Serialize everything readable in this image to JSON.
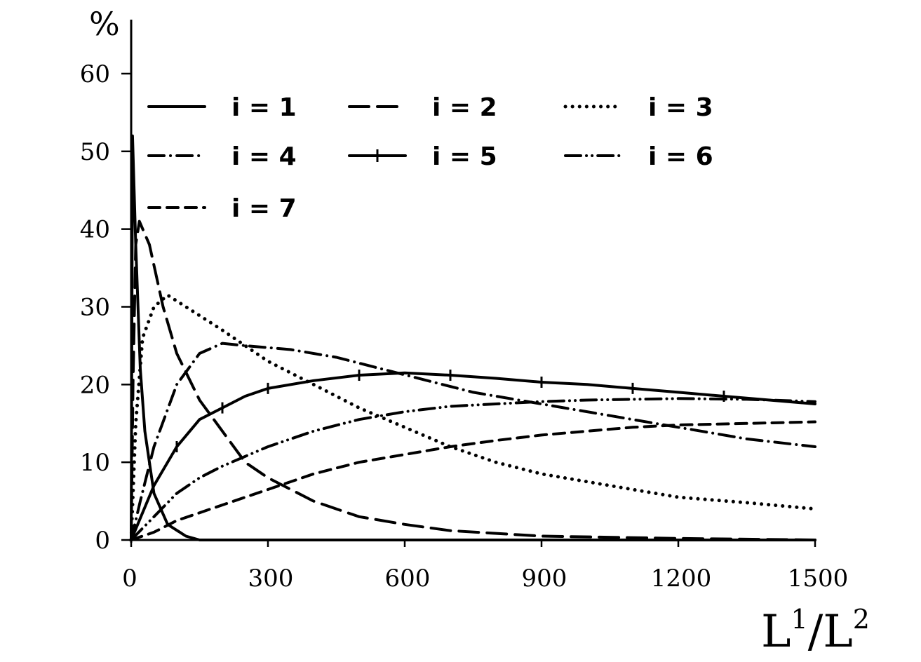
{
  "chart_data": {
    "type": "line",
    "title": "",
    "ylabel": "%",
    "xlabel": {
      "base": "L",
      "sup1": "1",
      "mid": "/L",
      "sup2": "2"
    },
    "xlim": [
      0,
      1500
    ],
    "ylim": [
      0,
      60
    ],
    "x_ticks": [
      0,
      300,
      600,
      900,
      1200,
      1500
    ],
    "y_ticks": [
      0,
      10,
      20,
      30,
      40,
      50,
      60
    ],
    "grid": false,
    "legend_position": "top",
    "series": [
      {
        "name": "i = 1",
        "style": "solid",
        "points": [
          [
            0,
            0
          ],
          [
            3,
            52
          ],
          [
            10,
            38
          ],
          [
            20,
            22
          ],
          [
            30,
            14
          ],
          [
            50,
            6
          ],
          [
            80,
            2
          ],
          [
            120,
            0.5
          ],
          [
            150,
            0
          ],
          [
            1500,
            0
          ]
        ]
      },
      {
        "name": "i = 2",
        "style": "longdash",
        "points": [
          [
            0,
            0
          ],
          [
            4,
            20
          ],
          [
            10,
            38
          ],
          [
            18,
            41
          ],
          [
            40,
            38
          ],
          [
            70,
            30
          ],
          [
            100,
            24
          ],
          [
            150,
            18
          ],
          [
            200,
            14
          ],
          [
            250,
            10
          ],
          [
            300,
            8
          ],
          [
            400,
            5
          ],
          [
            500,
            3
          ],
          [
            600,
            2
          ],
          [
            700,
            1.2
          ],
          [
            900,
            0.5
          ],
          [
            1200,
            0.2
          ],
          [
            1500,
            0
          ]
        ]
      },
      {
        "name": "i = 3",
        "style": "dotted",
        "points": [
          [
            0,
            0
          ],
          [
            10,
            15
          ],
          [
            25,
            26
          ],
          [
            50,
            30
          ],
          [
            80,
            31.5
          ],
          [
            120,
            30
          ],
          [
            200,
            27
          ],
          [
            250,
            25
          ],
          [
            300,
            23
          ],
          [
            400,
            20
          ],
          [
            500,
            17
          ],
          [
            600,
            14.5
          ],
          [
            700,
            12
          ],
          [
            800,
            10
          ],
          [
            900,
            8.5
          ],
          [
            1000,
            7.5
          ],
          [
            1100,
            6.5
          ],
          [
            1200,
            5.5
          ],
          [
            1350,
            4.8
          ],
          [
            1500,
            4
          ]
        ]
      },
      {
        "name": "i = 4",
        "style": "dashdot",
        "points": [
          [
            0,
            0
          ],
          [
            20,
            5
          ],
          [
            50,
            12
          ],
          [
            100,
            20
          ],
          [
            150,
            24
          ],
          [
            200,
            25.3
          ],
          [
            250,
            25
          ],
          [
            350,
            24.5
          ],
          [
            450,
            23.5
          ],
          [
            550,
            22
          ],
          [
            650,
            20.5
          ],
          [
            750,
            19
          ],
          [
            850,
            18
          ],
          [
            950,
            17
          ],
          [
            1050,
            16
          ],
          [
            1150,
            15
          ],
          [
            1250,
            14
          ],
          [
            1350,
            13
          ],
          [
            1500,
            12
          ]
        ]
      },
      {
        "name": "i = 5",
        "style": "dashbar",
        "points": [
          [
            0,
            0
          ],
          [
            50,
            7
          ],
          [
            100,
            12
          ],
          [
            150,
            15.5
          ],
          [
            200,
            17
          ],
          [
            250,
            18.5
          ],
          [
            300,
            19.5
          ],
          [
            400,
            20.5
          ],
          [
            500,
            21.2
          ],
          [
            600,
            21.5
          ],
          [
            700,
            21.2
          ],
          [
            800,
            20.8
          ],
          [
            900,
            20.3
          ],
          [
            1000,
            20
          ],
          [
            1100,
            19.5
          ],
          [
            1200,
            19
          ],
          [
            1300,
            18.5
          ],
          [
            1400,
            18
          ],
          [
            1500,
            17.5
          ]
        ]
      },
      {
        "name": "i = 6",
        "style": "dashdotdot",
        "points": [
          [
            0,
            0
          ],
          [
            50,
            3
          ],
          [
            100,
            6
          ],
          [
            150,
            8
          ],
          [
            200,
            9.5
          ],
          [
            300,
            12
          ],
          [
            400,
            14
          ],
          [
            500,
            15.5
          ],
          [
            600,
            16.5
          ],
          [
            700,
            17.2
          ],
          [
            800,
            17.5
          ],
          [
            900,
            17.8
          ],
          [
            1000,
            18
          ],
          [
            1100,
            18.1
          ],
          [
            1200,
            18.2
          ],
          [
            1350,
            18.1
          ],
          [
            1500,
            17.8
          ]
        ]
      },
      {
        "name": "i = 7",
        "style": "dashed",
        "points": [
          [
            0,
            0
          ],
          [
            50,
            1
          ],
          [
            100,
            2.5
          ],
          [
            200,
            4.5
          ],
          [
            300,
            6.5
          ],
          [
            400,
            8.5
          ],
          [
            500,
            10
          ],
          [
            600,
            11
          ],
          [
            700,
            12
          ],
          [
            800,
            12.8
          ],
          [
            900,
            13.5
          ],
          [
            1000,
            14
          ],
          [
            1100,
            14.5
          ],
          [
            1200,
            14.8
          ],
          [
            1350,
            15
          ],
          [
            1500,
            15.2
          ]
        ]
      }
    ]
  }
}
